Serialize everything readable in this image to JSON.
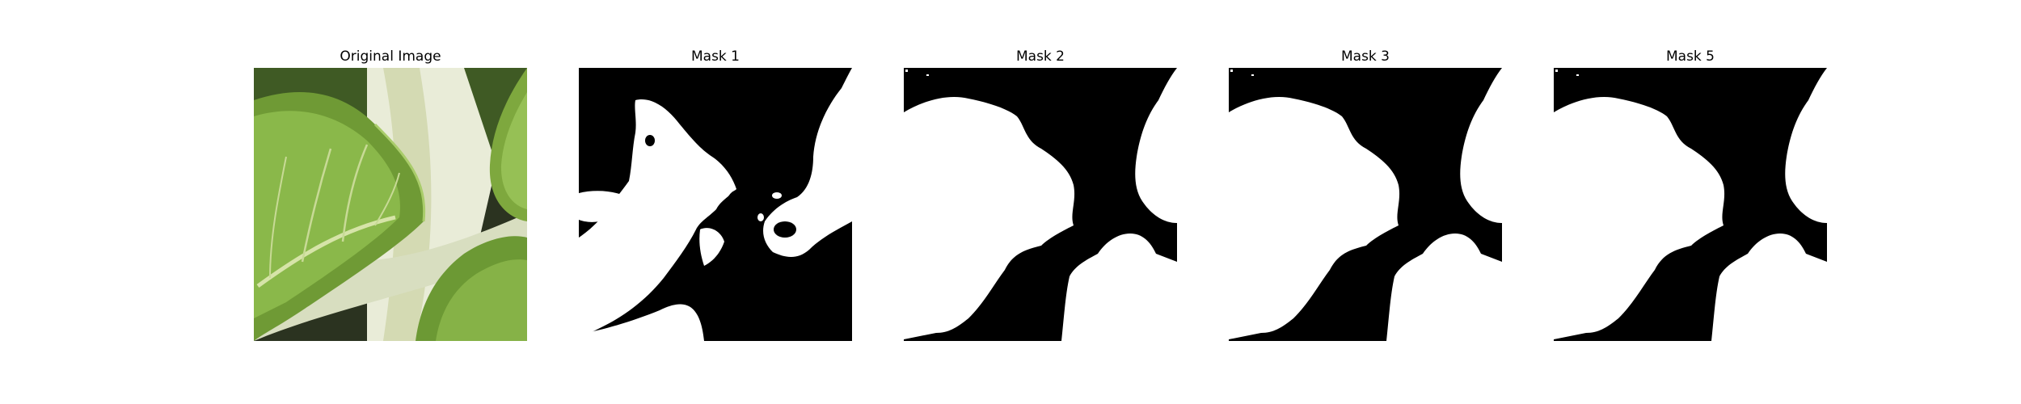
{
  "figure": {
    "panels": [
      {
        "title": "Original Image",
        "kind": "photo",
        "subject": "leaf-photo-icon"
      },
      {
        "title": "Mask 1",
        "kind": "mask",
        "variant": "noisy"
      },
      {
        "title": "Mask 2",
        "kind": "mask",
        "variant": "smooth"
      },
      {
        "title": "Mask 3",
        "kind": "mask",
        "variant": "smooth"
      },
      {
        "title": "Mask 5",
        "kind": "mask",
        "variant": "smooth"
      }
    ],
    "colors": {
      "mask_foreground": "#ffffff",
      "mask_background": "#000000",
      "leaf_dark": "#4f7a28",
      "leaf_light": "#9cc35a",
      "stem": "#dfe3c6"
    }
  }
}
